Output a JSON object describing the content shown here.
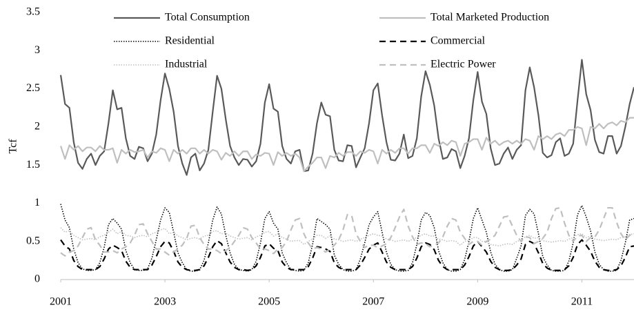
{
  "chart_data": {
    "type": "line",
    "y_label": "Tcf",
    "x": [
      2001,
      2001.083,
      2001.167,
      2001.25,
      2001.333,
      2001.417,
      2001.5,
      2001.583,
      2001.667,
      2001.75,
      2001.833,
      2001.917,
      2002,
      2002.083,
      2002.167,
      2002.25,
      2002.333,
      2002.417,
      2002.5,
      2002.583,
      2002.667,
      2002.75,
      2002.833,
      2002.917,
      2003,
      2003.083,
      2003.167,
      2003.25,
      2003.333,
      2003.417,
      2003.5,
      2003.583,
      2003.667,
      2003.75,
      2003.833,
      2003.917,
      2004,
      2004.083,
      2004.167,
      2004.25,
      2004.333,
      2004.417,
      2004.5,
      2004.583,
      2004.667,
      2004.75,
      2004.833,
      2004.917,
      2005,
      2005.083,
      2005.167,
      2005.25,
      2005.333,
      2005.417,
      2005.5,
      2005.583,
      2005.667,
      2005.75,
      2005.833,
      2005.917,
      2006,
      2006.083,
      2006.167,
      2006.25,
      2006.333,
      2006.417,
      2006.5,
      2006.583,
      2006.667,
      2006.75,
      2006.833,
      2006.917,
      2007,
      2007.083,
      2007.167,
      2007.25,
      2007.333,
      2007.417,
      2007.5,
      2007.583,
      2007.667,
      2007.75,
      2007.833,
      2007.917,
      2008,
      2008.083,
      2008.167,
      2008.25,
      2008.333,
      2008.417,
      2008.5,
      2008.583,
      2008.667,
      2008.75,
      2008.833,
      2008.917,
      2009,
      2009.083,
      2009.167,
      2009.25,
      2009.333,
      2009.417,
      2009.5,
      2009.583,
      2009.667,
      2009.75,
      2009.833,
      2009.917,
      2010,
      2010.083,
      2010.167,
      2010.25,
      2010.333,
      2010.417,
      2010.5,
      2010.583,
      2010.667,
      2010.75,
      2010.833,
      2010.917,
      2011,
      2011.083,
      2011.167,
      2011.25,
      2011.333,
      2011.417,
      2011.5,
      2011.583,
      2011.667,
      2011.75,
      2011.833,
      2011.917,
      2012
    ],
    "xlim": [
      2001,
      2012
    ],
    "xticks": [
      2001,
      2003,
      2005,
      2007,
      2009,
      2011
    ],
    "ylim": [
      0,
      3.5
    ],
    "yticks": [
      0,
      0.5,
      1,
      1.5,
      2,
      2.5,
      3,
      3.5
    ],
    "grid": false,
    "series": [
      {
        "name": "Total Consumption",
        "color": "#595959",
        "line_style": "solid",
        "values": [
          2.68,
          2.3,
          2.25,
          1.8,
          1.53,
          1.45,
          1.58,
          1.65,
          1.5,
          1.62,
          1.68,
          2.05,
          2.48,
          2.23,
          2.25,
          1.85,
          1.62,
          1.58,
          1.74,
          1.72,
          1.55,
          1.65,
          1.9,
          2.35,
          2.7,
          2.5,
          2.2,
          1.75,
          1.52,
          1.37,
          1.6,
          1.65,
          1.43,
          1.52,
          1.7,
          2.2,
          2.67,
          2.5,
          2.1,
          1.75,
          1.6,
          1.5,
          1.58,
          1.57,
          1.48,
          1.55,
          1.78,
          2.32,
          2.56,
          2.24,
          2.2,
          1.75,
          1.58,
          1.52,
          1.68,
          1.7,
          1.42,
          1.43,
          1.65,
          2.05,
          2.32,
          2.16,
          2.14,
          1.7,
          1.56,
          1.55,
          1.76,
          1.75,
          1.47,
          1.6,
          1.72,
          2.05,
          2.48,
          2.57,
          2.15,
          1.8,
          1.57,
          1.56,
          1.65,
          1.9,
          1.59,
          1.62,
          1.85,
          2.4,
          2.73,
          2.55,
          2.28,
          1.85,
          1.58,
          1.6,
          1.71,
          1.68,
          1.46,
          1.62,
          1.85,
          2.35,
          2.72,
          2.33,
          2.17,
          1.72,
          1.5,
          1.52,
          1.65,
          1.73,
          1.58,
          1.7,
          1.76,
          2.48,
          2.78,
          2.52,
          2.15,
          1.66,
          1.6,
          1.63,
          1.8,
          1.85,
          1.62,
          1.65,
          1.78,
          2.35,
          2.88,
          2.43,
          2.22,
          1.83,
          1.67,
          1.65,
          1.88,
          1.88,
          1.65,
          1.75,
          2.0,
          2.3,
          2.52
        ]
      },
      {
        "name": "Total Marketed Production",
        "color": "#bfbfbf",
        "line_style": "solid",
        "values": [
          1.75,
          1.58,
          1.76,
          1.7,
          1.75,
          1.68,
          1.73,
          1.73,
          1.68,
          1.75,
          1.7,
          1.7,
          1.72,
          1.53,
          1.7,
          1.65,
          1.7,
          1.67,
          1.68,
          1.7,
          1.6,
          1.68,
          1.66,
          1.72,
          1.7,
          1.55,
          1.7,
          1.65,
          1.7,
          1.65,
          1.72,
          1.72,
          1.65,
          1.7,
          1.65,
          1.7,
          1.68,
          1.57,
          1.66,
          1.62,
          1.68,
          1.62,
          1.68,
          1.68,
          1.58,
          1.64,
          1.62,
          1.66,
          1.65,
          1.5,
          1.67,
          1.62,
          1.66,
          1.62,
          1.65,
          1.6,
          1.42,
          1.48,
          1.53,
          1.6,
          1.6,
          1.46,
          1.62,
          1.6,
          1.66,
          1.62,
          1.67,
          1.67,
          1.62,
          1.68,
          1.66,
          1.7,
          1.68,
          1.52,
          1.7,
          1.65,
          1.7,
          1.66,
          1.72,
          1.72,
          1.65,
          1.72,
          1.72,
          1.76,
          1.76,
          1.66,
          1.78,
          1.75,
          1.8,
          1.76,
          1.82,
          1.8,
          1.62,
          1.78,
          1.8,
          1.84,
          1.84,
          1.7,
          1.86,
          1.78,
          1.82,
          1.76,
          1.8,
          1.82,
          1.78,
          1.82,
          1.78,
          1.84,
          1.82,
          1.7,
          1.88,
          1.84,
          1.88,
          1.84,
          1.9,
          1.92,
          1.88,
          1.96,
          1.96,
          2.0,
          1.98,
          1.76,
          2.0,
          1.98,
          2.04,
          1.98,
          2.04,
          2.06,
          2.02,
          2.08,
          2.06,
          2.12,
          2.12
        ]
      },
      {
        "name": "Residential",
        "color": "#000000",
        "line_style": "dotted",
        "values": [
          0.99,
          0.78,
          0.68,
          0.4,
          0.22,
          0.14,
          0.12,
          0.12,
          0.13,
          0.22,
          0.42,
          0.72,
          0.8,
          0.74,
          0.66,
          0.38,
          0.22,
          0.13,
          0.12,
          0.12,
          0.14,
          0.28,
          0.52,
          0.78,
          0.94,
          0.88,
          0.62,
          0.35,
          0.22,
          0.13,
          0.11,
          0.11,
          0.13,
          0.25,
          0.48,
          0.78,
          0.95,
          0.86,
          0.58,
          0.35,
          0.2,
          0.13,
          0.12,
          0.11,
          0.13,
          0.24,
          0.48,
          0.8,
          0.89,
          0.74,
          0.66,
          0.35,
          0.22,
          0.13,
          0.12,
          0.11,
          0.12,
          0.22,
          0.46,
          0.8,
          0.76,
          0.72,
          0.66,
          0.32,
          0.2,
          0.13,
          0.11,
          0.11,
          0.13,
          0.27,
          0.48,
          0.72,
          0.82,
          0.89,
          0.62,
          0.36,
          0.2,
          0.13,
          0.11,
          0.11,
          0.12,
          0.22,
          0.46,
          0.78,
          0.88,
          0.84,
          0.68,
          0.38,
          0.22,
          0.13,
          0.11,
          0.11,
          0.13,
          0.26,
          0.5,
          0.8,
          0.94,
          0.78,
          0.62,
          0.36,
          0.2,
          0.13,
          0.11,
          0.11,
          0.13,
          0.28,
          0.44,
          0.84,
          0.92,
          0.86,
          0.6,
          0.3,
          0.19,
          0.12,
          0.11,
          0.11,
          0.12,
          0.24,
          0.48,
          0.85,
          0.97,
          0.82,
          0.64,
          0.36,
          0.2,
          0.13,
          0.11,
          0.11,
          0.12,
          0.25,
          0.48,
          0.78,
          0.8
        ]
      },
      {
        "name": "Commercial",
        "color": "#000000",
        "line_style": "dashed",
        "values": [
          0.52,
          0.44,
          0.4,
          0.25,
          0.17,
          0.13,
          0.13,
          0.13,
          0.13,
          0.17,
          0.27,
          0.4,
          0.45,
          0.42,
          0.38,
          0.24,
          0.16,
          0.13,
          0.13,
          0.13,
          0.13,
          0.19,
          0.3,
          0.43,
          0.5,
          0.48,
          0.37,
          0.23,
          0.16,
          0.13,
          0.12,
          0.12,
          0.13,
          0.18,
          0.29,
          0.43,
          0.51,
          0.47,
          0.35,
          0.23,
          0.16,
          0.13,
          0.13,
          0.12,
          0.13,
          0.18,
          0.29,
          0.44,
          0.47,
          0.41,
          0.38,
          0.23,
          0.16,
          0.13,
          0.13,
          0.13,
          0.13,
          0.17,
          0.28,
          0.43,
          0.42,
          0.4,
          0.37,
          0.22,
          0.16,
          0.13,
          0.13,
          0.13,
          0.13,
          0.19,
          0.29,
          0.4,
          0.45,
          0.48,
          0.36,
          0.23,
          0.16,
          0.13,
          0.13,
          0.13,
          0.13,
          0.17,
          0.28,
          0.43,
          0.48,
          0.46,
          0.39,
          0.25,
          0.17,
          0.13,
          0.13,
          0.13,
          0.13,
          0.19,
          0.3,
          0.44,
          0.5,
          0.43,
          0.36,
          0.24,
          0.16,
          0.13,
          0.12,
          0.12,
          0.13,
          0.19,
          0.27,
          0.46,
          0.5,
          0.47,
          0.35,
          0.21,
          0.15,
          0.12,
          0.12,
          0.12,
          0.13,
          0.18,
          0.29,
          0.46,
          0.52,
          0.45,
          0.37,
          0.24,
          0.16,
          0.13,
          0.12,
          0.12,
          0.13,
          0.18,
          0.29,
          0.43,
          0.44
        ]
      },
      {
        "name": "Industrial",
        "color": "#bfbfbf",
        "line_style": "dotted",
        "values": [
          0.68,
          0.62,
          0.64,
          0.58,
          0.55,
          0.52,
          0.53,
          0.54,
          0.52,
          0.56,
          0.58,
          0.62,
          0.66,
          0.6,
          0.63,
          0.58,
          0.57,
          0.55,
          0.57,
          0.58,
          0.56,
          0.6,
          0.62,
          0.65,
          0.67,
          0.6,
          0.62,
          0.57,
          0.55,
          0.52,
          0.54,
          0.55,
          0.53,
          0.57,
          0.58,
          0.63,
          0.64,
          0.6,
          0.61,
          0.57,
          0.55,
          0.53,
          0.54,
          0.55,
          0.52,
          0.56,
          0.58,
          0.62,
          0.63,
          0.57,
          0.6,
          0.55,
          0.53,
          0.5,
          0.51,
          0.51,
          0.46,
          0.5,
          0.53,
          0.58,
          0.58,
          0.54,
          0.57,
          0.53,
          0.52,
          0.5,
          0.51,
          0.52,
          0.5,
          0.53,
          0.55,
          0.58,
          0.6,
          0.58,
          0.57,
          0.53,
          0.52,
          0.5,
          0.51,
          0.52,
          0.5,
          0.53,
          0.55,
          0.58,
          0.6,
          0.57,
          0.57,
          0.53,
          0.52,
          0.5,
          0.51,
          0.5,
          0.45,
          0.5,
          0.51,
          0.55,
          0.55,
          0.5,
          0.5,
          0.46,
          0.45,
          0.44,
          0.46,
          0.47,
          0.46,
          0.5,
          0.52,
          0.56,
          0.58,
          0.54,
          0.55,
          0.51,
          0.5,
          0.49,
          0.5,
          0.51,
          0.5,
          0.53,
          0.55,
          0.59,
          0.6,
          0.55,
          0.57,
          0.53,
          0.52,
          0.51,
          0.52,
          0.53,
          0.52,
          0.55,
          0.56,
          0.59,
          0.6
        ]
      },
      {
        "name": "Electric Power",
        "color": "#bfbfbf",
        "line_style": "dashed",
        "values": [
          0.35,
          0.31,
          0.36,
          0.38,
          0.44,
          0.55,
          0.66,
          0.68,
          0.52,
          0.45,
          0.36,
          0.36,
          0.38,
          0.35,
          0.4,
          0.43,
          0.48,
          0.58,
          0.72,
          0.73,
          0.6,
          0.5,
          0.4,
          0.4,
          0.36,
          0.32,
          0.36,
          0.4,
          0.45,
          0.54,
          0.7,
          0.71,
          0.55,
          0.46,
          0.4,
          0.4,
          0.38,
          0.34,
          0.38,
          0.42,
          0.5,
          0.58,
          0.68,
          0.66,
          0.55,
          0.48,
          0.4,
          0.4,
          0.38,
          0.34,
          0.4,
          0.42,
          0.5,
          0.65,
          0.78,
          0.8,
          0.6,
          0.48,
          0.4,
          0.42,
          0.4,
          0.36,
          0.4,
          0.45,
          0.52,
          0.65,
          0.85,
          0.84,
          0.6,
          0.5,
          0.42,
          0.45,
          0.45,
          0.42,
          0.44,
          0.47,
          0.55,
          0.68,
          0.82,
          0.92,
          0.7,
          0.56,
          0.46,
          0.48,
          0.47,
          0.43,
          0.45,
          0.48,
          0.56,
          0.7,
          0.8,
          0.78,
          0.62,
          0.54,
          0.46,
          0.5,
          0.5,
          0.45,
          0.5,
          0.53,
          0.58,
          0.7,
          0.82,
          0.83,
          0.7,
          0.58,
          0.5,
          0.56,
          0.55,
          0.47,
          0.5,
          0.54,
          0.62,
          0.8,
          0.93,
          0.94,
          0.74,
          0.58,
          0.5,
          0.57,
          0.58,
          0.5,
          0.55,
          0.56,
          0.65,
          0.8,
          0.94,
          0.94,
          0.75,
          0.6,
          0.52,
          0.58,
          0.6
        ]
      }
    ]
  }
}
